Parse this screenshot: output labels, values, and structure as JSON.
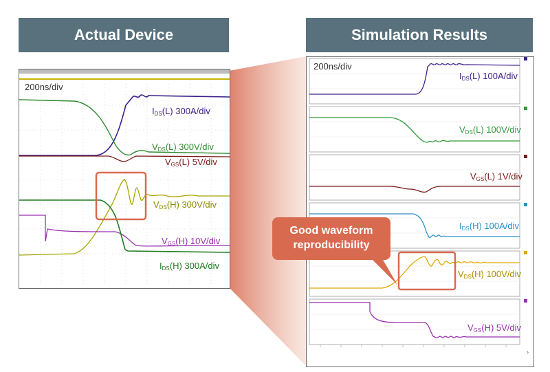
{
  "headers": {
    "left": "Actual Device",
    "right": "Simulation Results"
  },
  "left": {
    "timebase": "200ns/div",
    "labels": [
      {
        "pre": "I",
        "sub": "DS",
        "post": "(L) 300A/div",
        "color": "#3c1f8a"
      },
      {
        "pre": "V",
        "sub": "DS",
        "post": "(L) 300V/div",
        "color": "#2e8b2e"
      },
      {
        "pre": "V",
        "sub": "GS",
        "post": "(L) 5V/div",
        "color": "#7b1a1a"
      },
      {
        "pre": "V",
        "sub": "DS",
        "post": "(H) 300V/div",
        "color": "#8a8a00"
      },
      {
        "pre": "V",
        "sub": "GS",
        "post": "(H) 10V/div",
        "color": "#9a2fb0"
      },
      {
        "pre": "I",
        "sub": "DS",
        "post": "(H) 300A/div",
        "color": "#1e7a1e"
      }
    ]
  },
  "right": {
    "timebase": "200ns/div",
    "labels": [
      {
        "pre": "I",
        "sub": "DS",
        "post": "(L) 100A/div",
        "color": "#3c1f8a"
      },
      {
        "pre": "V",
        "sub": "DS",
        "post": "(L) 100V/div",
        "color": "#2e9b3a"
      },
      {
        "pre": "V",
        "sub": "GS",
        "post": "(L) 1V/div",
        "color": "#7b1a1a"
      },
      {
        "pre": "I",
        "sub": "DS",
        "post": "(H) 100A/div",
        "color": "#2a8fc8"
      },
      {
        "pre": "V",
        "sub": "DS",
        "post": "(H) 100V/div",
        "color": "#b38a00"
      },
      {
        "pre": "V",
        "sub": "GS",
        "post": "(H) 5V/div",
        "color": "#9a2fb0"
      }
    ]
  },
  "callout": {
    "line1": "Good waveform",
    "line2": "reproducibility"
  },
  "colors": {
    "header_bg": "#58717d",
    "accent": "#d86a50"
  }
}
